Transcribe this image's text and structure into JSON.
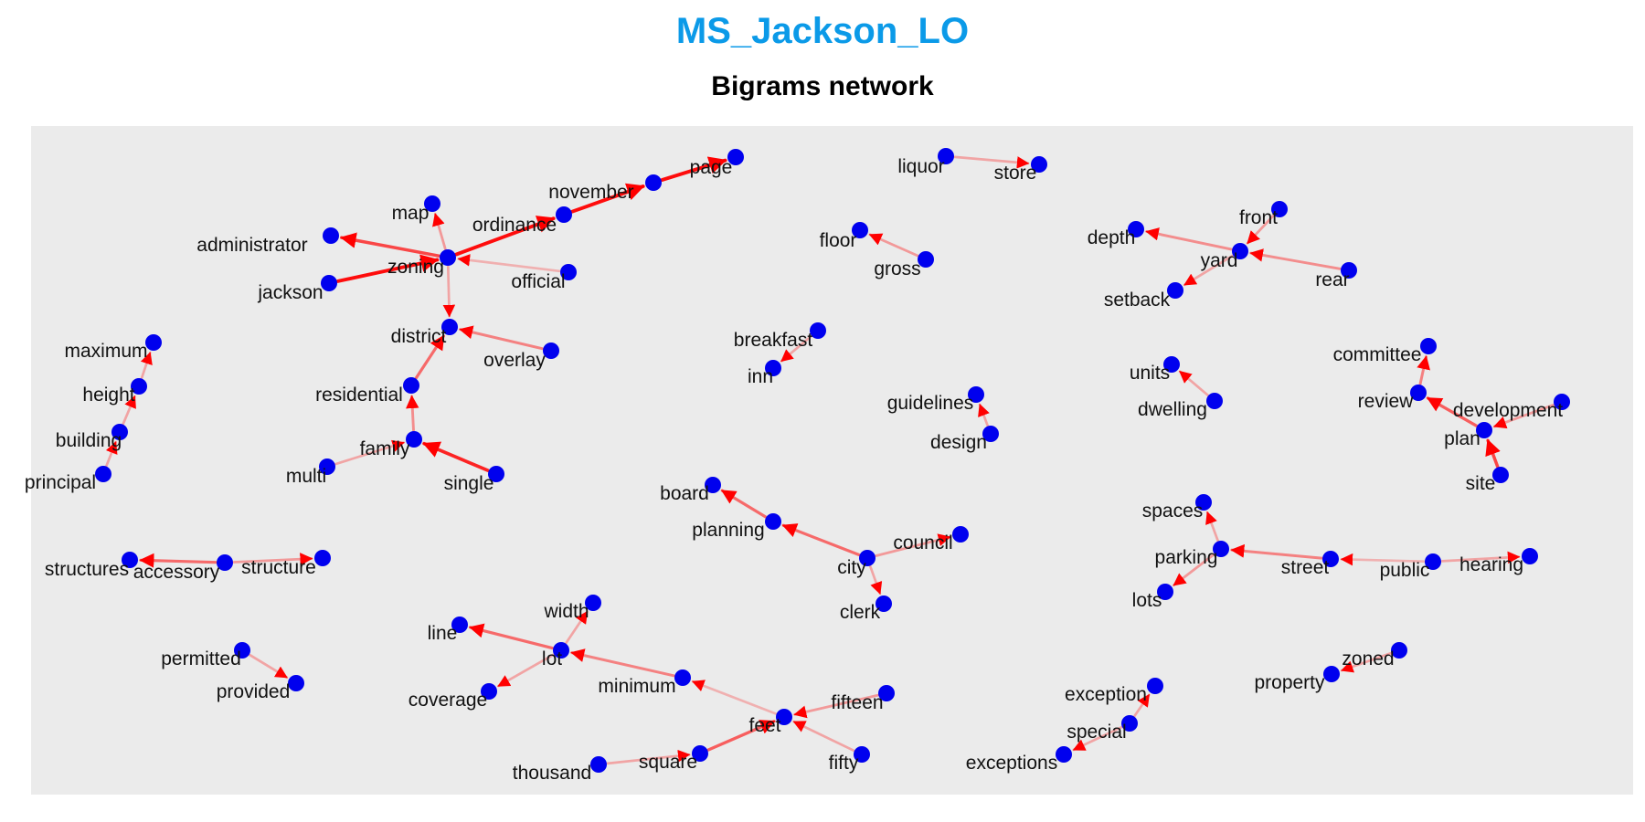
{
  "title": "MS_Jackson_LO",
  "subtitle": "Bigrams network",
  "colors": {
    "panel": "#ebebeb",
    "node": "#0000ee",
    "edge": "#ff0000",
    "title": "#0b9ae8"
  },
  "nodes": [
    {
      "id": "page",
      "label": "page"
    },
    {
      "id": "november",
      "label": "november"
    },
    {
      "id": "ordinance",
      "label": "ordinance"
    },
    {
      "id": "map",
      "label": "map"
    },
    {
      "id": "administrator",
      "label": "administrator"
    },
    {
      "id": "zoning",
      "label": "zoning"
    },
    {
      "id": "jackson",
      "label": "jackson"
    },
    {
      "id": "official",
      "label": "official"
    },
    {
      "id": "district",
      "label": "district"
    },
    {
      "id": "overlay",
      "label": "overlay"
    },
    {
      "id": "residential",
      "label": "residential"
    },
    {
      "id": "family",
      "label": "family"
    },
    {
      "id": "multi",
      "label": "multi"
    },
    {
      "id": "single",
      "label": "single"
    },
    {
      "id": "maximum",
      "label": "maximum"
    },
    {
      "id": "height",
      "label": "height"
    },
    {
      "id": "building",
      "label": "building"
    },
    {
      "id": "principal",
      "label": "principal"
    },
    {
      "id": "structures",
      "label": "structures"
    },
    {
      "id": "accessory",
      "label": "accessory"
    },
    {
      "id": "structure",
      "label": "structure"
    },
    {
      "id": "permitted",
      "label": "permitted"
    },
    {
      "id": "provided",
      "label": "provided"
    },
    {
      "id": "liquor",
      "label": "liquor"
    },
    {
      "id": "store",
      "label": "store"
    },
    {
      "id": "floor",
      "label": "floor"
    },
    {
      "id": "gross",
      "label": "gross"
    },
    {
      "id": "breakfast",
      "label": "breakfast"
    },
    {
      "id": "inn",
      "label": "inn"
    },
    {
      "id": "guidelines",
      "label": "guidelines"
    },
    {
      "id": "design",
      "label": "design"
    },
    {
      "id": "board",
      "label": "board"
    },
    {
      "id": "planning",
      "label": "planning"
    },
    {
      "id": "city",
      "label": "city"
    },
    {
      "id": "council",
      "label": "council"
    },
    {
      "id": "clerk",
      "label": "clerk"
    },
    {
      "id": "width",
      "label": "width"
    },
    {
      "id": "line",
      "label": "line"
    },
    {
      "id": "lot",
      "label": "lot"
    },
    {
      "id": "coverage",
      "label": "coverage"
    },
    {
      "id": "minimum",
      "label": "minimum"
    },
    {
      "id": "feet",
      "label": "feet"
    },
    {
      "id": "fifteen",
      "label": "fifteen"
    },
    {
      "id": "fifty",
      "label": "fifty"
    },
    {
      "id": "square",
      "label": "square"
    },
    {
      "id": "thousand",
      "label": "thousand"
    },
    {
      "id": "front",
      "label": "front"
    },
    {
      "id": "depth",
      "label": "depth"
    },
    {
      "id": "yard",
      "label": "yard"
    },
    {
      "id": "rear",
      "label": "rear"
    },
    {
      "id": "setback",
      "label": "setback"
    },
    {
      "id": "units",
      "label": "units"
    },
    {
      "id": "dwelling",
      "label": "dwelling"
    },
    {
      "id": "committee",
      "label": "committee"
    },
    {
      "id": "review",
      "label": "review"
    },
    {
      "id": "development",
      "label": "development"
    },
    {
      "id": "plan",
      "label": "plan"
    },
    {
      "id": "site",
      "label": "site"
    },
    {
      "id": "spaces",
      "label": "spaces"
    },
    {
      "id": "parking",
      "label": "parking"
    },
    {
      "id": "street",
      "label": "street"
    },
    {
      "id": "public",
      "label": "public"
    },
    {
      "id": "hearing",
      "label": "hearing"
    },
    {
      "id": "lots",
      "label": "lots"
    },
    {
      "id": "exception",
      "label": "exception"
    },
    {
      "id": "special",
      "label": "special"
    },
    {
      "id": "exceptions",
      "label": "exceptions"
    },
    {
      "id": "zoned",
      "label": "zoned"
    },
    {
      "id": "property",
      "label": "property"
    }
  ],
  "edges": [
    {
      "from": "november",
      "to": "page",
      "weight": 0.95
    },
    {
      "from": "ordinance",
      "to": "november",
      "weight": 0.95
    },
    {
      "from": "zoning",
      "to": "ordinance",
      "weight": 0.95
    },
    {
      "from": "jackson",
      "to": "zoning",
      "weight": 0.95
    },
    {
      "from": "zoning",
      "to": "administrator",
      "weight": 0.7
    },
    {
      "from": "zoning",
      "to": "map",
      "weight": 0.35
    },
    {
      "from": "official",
      "to": "zoning",
      "weight": 0.25
    },
    {
      "from": "zoning",
      "to": "district",
      "weight": 0.3
    },
    {
      "from": "overlay",
      "to": "district",
      "weight": 0.45
    },
    {
      "from": "residential",
      "to": "district",
      "weight": 0.55
    },
    {
      "from": "family",
      "to": "residential",
      "weight": 0.4
    },
    {
      "from": "multi",
      "to": "family",
      "weight": 0.3
    },
    {
      "from": "single",
      "to": "family",
      "weight": 0.85
    },
    {
      "from": "height",
      "to": "maximum",
      "weight": 0.3
    },
    {
      "from": "building",
      "to": "height",
      "weight": 0.3
    },
    {
      "from": "principal",
      "to": "building",
      "weight": 0.3
    },
    {
      "from": "accessory",
      "to": "structures",
      "weight": 0.55
    },
    {
      "from": "accessory",
      "to": "structure",
      "weight": 0.35
    },
    {
      "from": "permitted",
      "to": "provided",
      "weight": 0.3
    },
    {
      "from": "liquor",
      "to": "store",
      "weight": 0.3
    },
    {
      "from": "gross",
      "to": "floor",
      "weight": 0.35
    },
    {
      "from": "breakfast",
      "to": "inn",
      "weight": 0.3
    },
    {
      "from": "design",
      "to": "guidelines",
      "weight": 0.3
    },
    {
      "from": "planning",
      "to": "board",
      "weight": 0.55
    },
    {
      "from": "city",
      "to": "planning",
      "weight": 0.55
    },
    {
      "from": "city",
      "to": "council",
      "weight": 0.35
    },
    {
      "from": "city",
      "to": "clerk",
      "weight": 0.3
    },
    {
      "from": "lot",
      "to": "width",
      "weight": 0.3
    },
    {
      "from": "lot",
      "to": "line",
      "weight": 0.55
    },
    {
      "from": "lot",
      "to": "coverage",
      "weight": 0.3
    },
    {
      "from": "minimum",
      "to": "lot",
      "weight": 0.45
    },
    {
      "from": "feet",
      "to": "minimum",
      "weight": 0.25
    },
    {
      "from": "fifteen",
      "to": "feet",
      "weight": 0.35
    },
    {
      "from": "fifty",
      "to": "feet",
      "weight": 0.3
    },
    {
      "from": "square",
      "to": "feet",
      "weight": 0.6
    },
    {
      "from": "thousand",
      "to": "square",
      "weight": 0.3
    },
    {
      "from": "front",
      "to": "yard",
      "weight": 0.35
    },
    {
      "from": "yard",
      "to": "depth",
      "weight": 0.4
    },
    {
      "from": "rear",
      "to": "yard",
      "weight": 0.4
    },
    {
      "from": "yard",
      "to": "setback",
      "weight": 0.3
    },
    {
      "from": "dwelling",
      "to": "units",
      "weight": 0.3
    },
    {
      "from": "review",
      "to": "committee",
      "weight": 0.45
    },
    {
      "from": "plan",
      "to": "review",
      "weight": 0.6
    },
    {
      "from": "development",
      "to": "plan",
      "weight": 0.35
    },
    {
      "from": "site",
      "to": "plan",
      "weight": 0.7
    },
    {
      "from": "parking",
      "to": "spaces",
      "weight": 0.3
    },
    {
      "from": "street",
      "to": "parking",
      "weight": 0.45
    },
    {
      "from": "parking",
      "to": "lots",
      "weight": 0.35
    },
    {
      "from": "public",
      "to": "street",
      "weight": 0.25
    },
    {
      "from": "public",
      "to": "hearing",
      "weight": 0.3
    },
    {
      "from": "special",
      "to": "exception",
      "weight": 0.3
    },
    {
      "from": "special",
      "to": "exceptions",
      "weight": 0.3
    },
    {
      "from": "zoned",
      "to": "property",
      "weight": 0.3
    }
  ]
}
